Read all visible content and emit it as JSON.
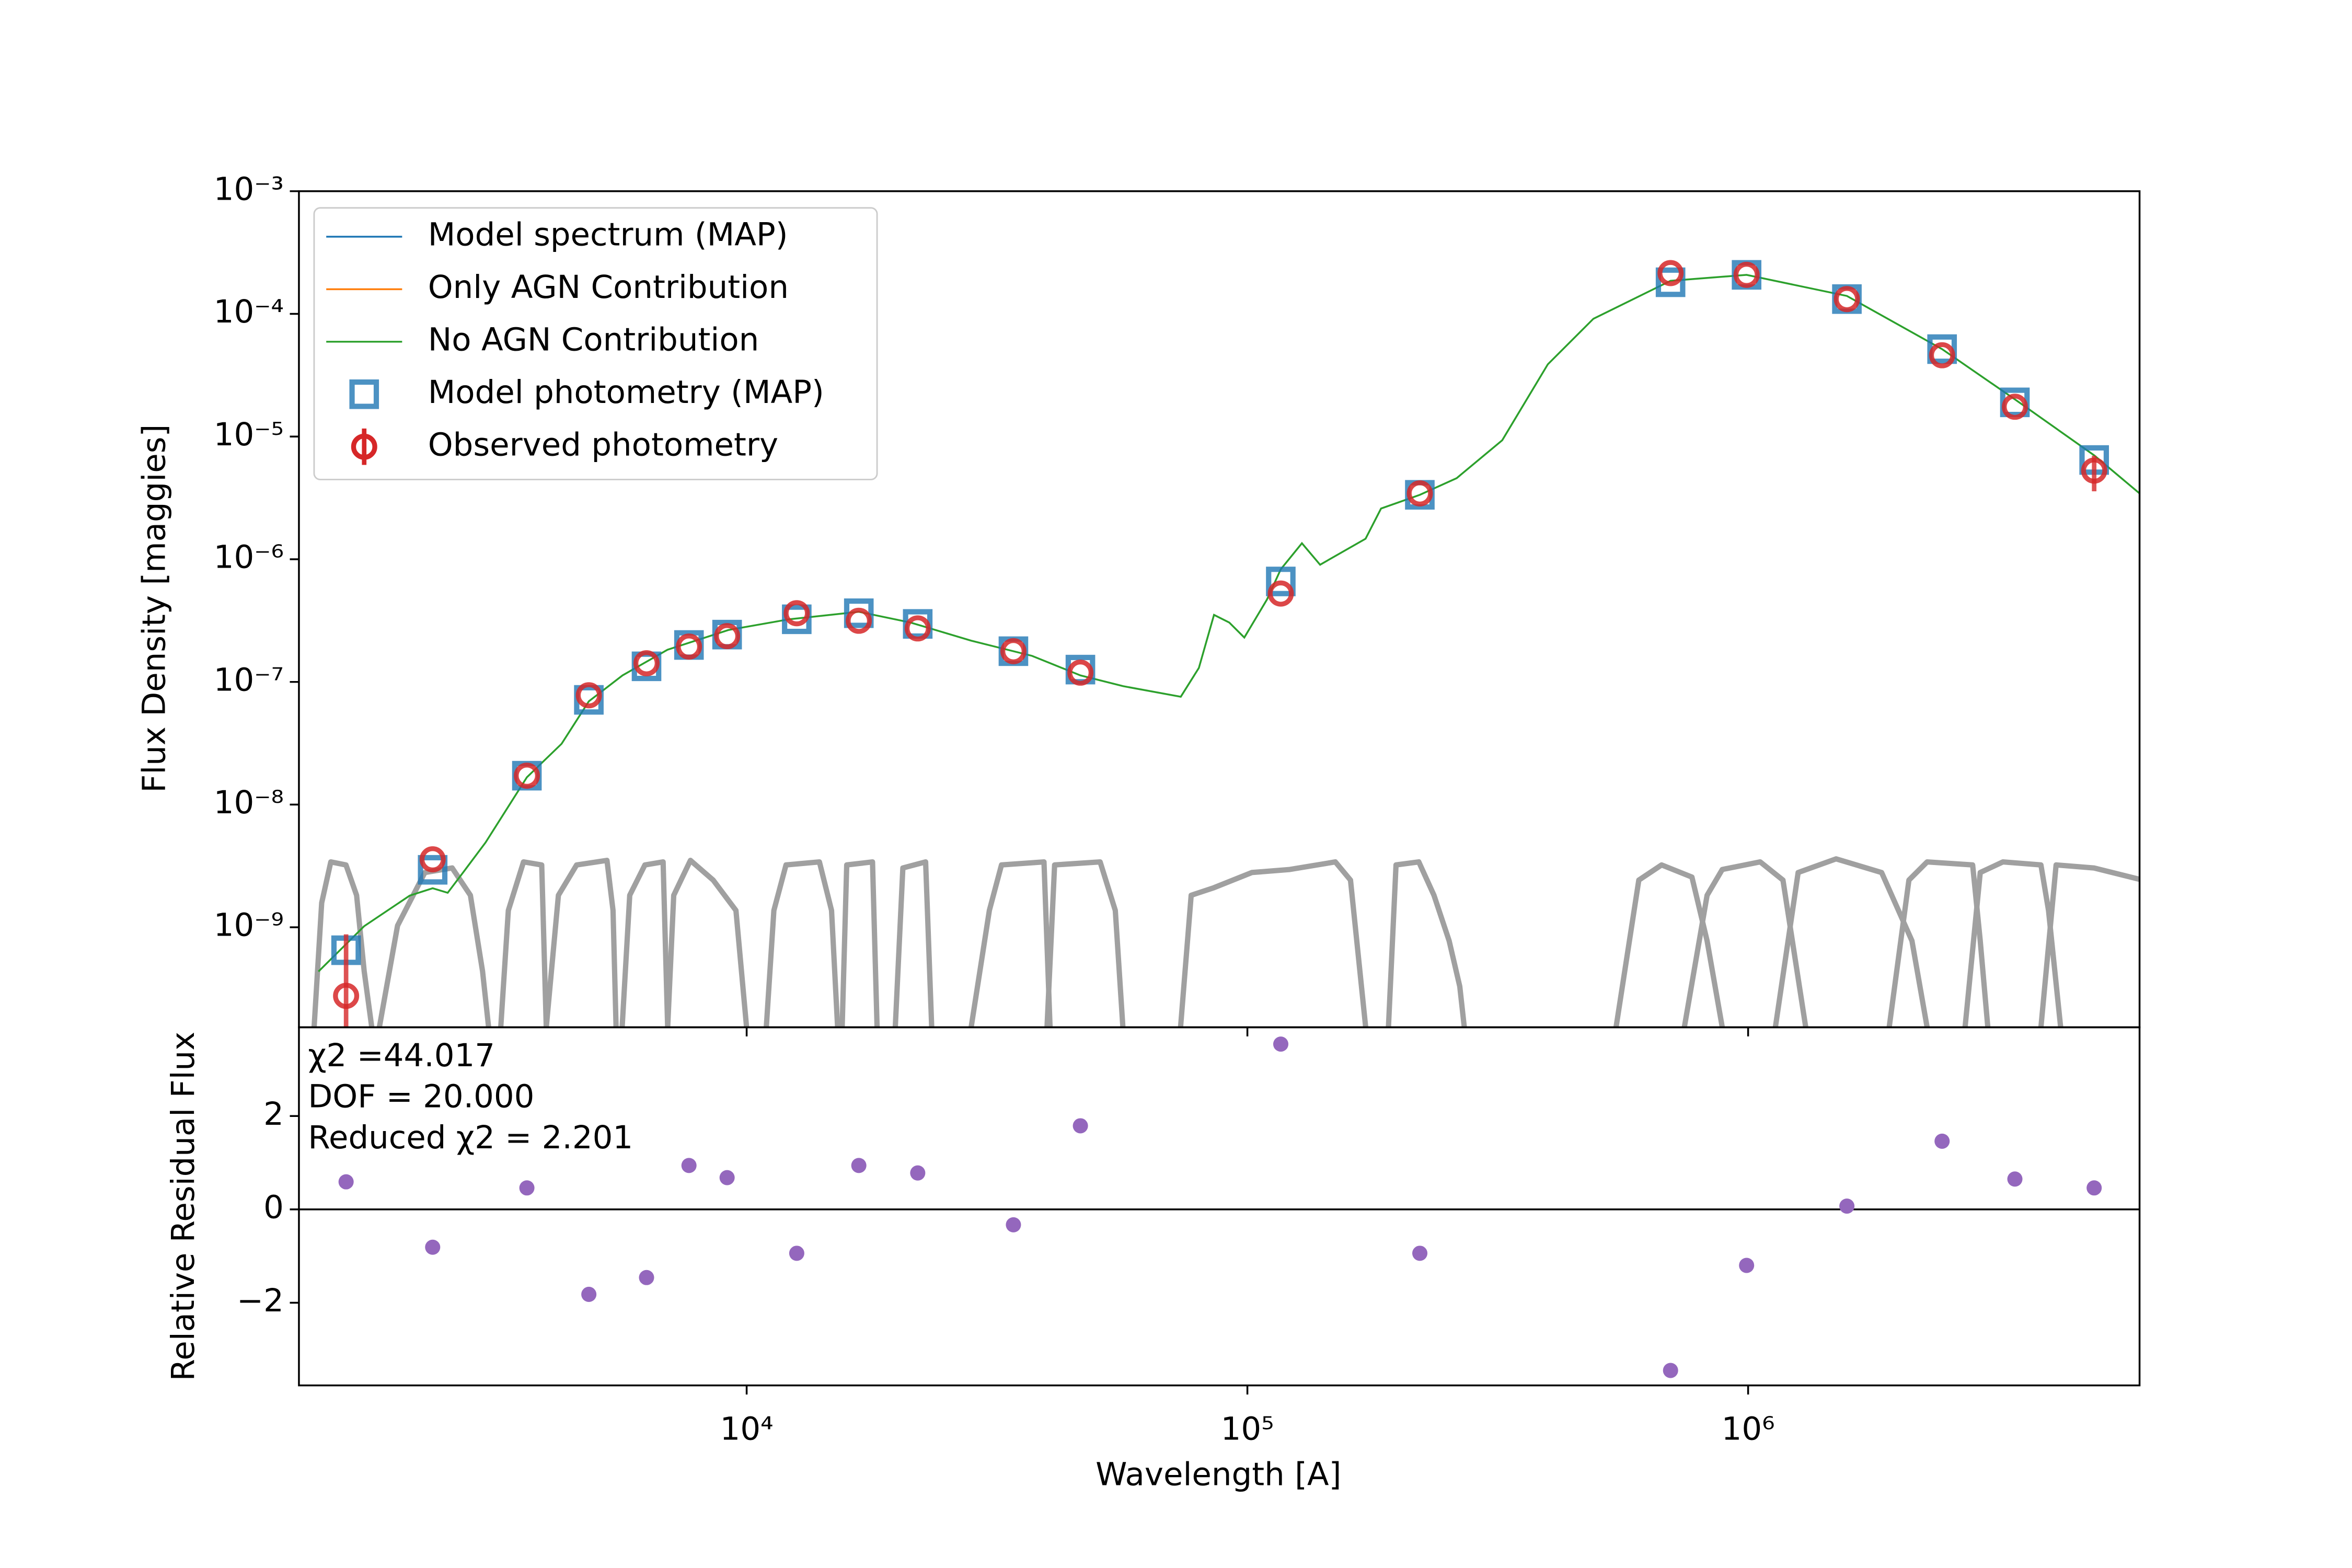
{
  "chart_data": [
    {
      "type": "sed",
      "ylabel": "Flux Density [maggies]",
      "xscale": "log",
      "yscale": "log",
      "xlim": [
        1276,
        6050000
      ],
      "ylim": [
        1.53e-10,
        0.001
      ],
      "yticks": [
        {
          "value": 0.001,
          "label": "10⁻³"
        },
        {
          "value": 0.0001,
          "label": "10⁻⁴"
        },
        {
          "value": 1e-05,
          "label": "10⁻⁵"
        },
        {
          "value": 1e-06,
          "label": "10⁻⁶"
        },
        {
          "value": 1e-07,
          "label": "10⁻⁷"
        },
        {
          "value": 1e-08,
          "label": "10⁻⁸"
        },
        {
          "value": 1e-09,
          "label": "10⁻⁹"
        }
      ],
      "legend": "upper left",
      "series": [
        {
          "name": "Model spectrum (MAP)",
          "color": "#1f77b4",
          "kind": "line",
          "x": [],
          "values": []
        },
        {
          "name": "Only AGN Contribution",
          "color": "#ff7f0e",
          "kind": "line",
          "x": [],
          "values": []
        },
        {
          "name": "No AGN Contribution",
          "color": "#2ca02c",
          "kind": "line",
          "x": [
            1396,
            1722,
            2123,
            2360,
            2529,
            2710,
            3010,
            3640,
            4270,
            4840,
            5650,
            6950,
            9200,
            12160,
            16750,
            21240,
            28060,
            37150,
            46400,
            56490,
            73620,
            80000,
            85770,
            92000,
            98600,
            109400,
            116600,
            128500,
            139700,
            172200,
            184900,
            221000,
            261800,
            322800,
            398100,
            490900,
            700000,
            993000,
            1575000,
            2440000,
            3410000,
            4910000,
            6050000
          ],
          "values": [
            4.36e-10,
            1.02e-09,
            1.81e-09,
            2.08e-09,
            1.91e-09,
            2.77e-09,
            4.91e-09,
            1.67e-08,
            3.13e-08,
            6.95e-08,
            1.13e-07,
            1.83e-07,
            2.65e-07,
            3.24e-07,
            3.73e-07,
            3.05e-07,
            2.17e-07,
            1.63e-07,
            1.13e-07,
            9.23e-08,
            7.57e-08,
            1.3e-07,
            3.52e-07,
            3.05e-07,
            2.3e-07,
            4.69e-07,
            8.28e-07,
            1.35e-06,
            9.02e-07,
            1.47e-06,
            2.59e-06,
            3.35e-06,
            4.58e-06,
            9.33e-06,
            3.88e-05,
            9.12e-05,
            0.000186,
            0.000208,
            0.00014,
            5.16e-05,
            2.01e-05,
            7.03e-06,
            3.44e-06
          ]
        },
        {
          "name": "Model photometry (MAP)",
          "color": "#1f77b4",
          "kind": "square",
          "x": [
            1585,
            2360,
            3640,
            4840,
            6310,
            7670,
            9140,
            12590,
            16750,
            21960,
            34100,
            46400,
            116600,
            221000,
            700000,
            993000,
            1575000,
            2440000,
            3410000,
            4910000
          ],
          "values": [
            6.5e-10,
            2.94e-09,
            1.72e-08,
            7.14e-08,
            1.34e-07,
            2e-07,
            2.43e-07,
            3.24e-07,
            3.63e-07,
            2.97e-07,
            1.78e-07,
            1.26e-07,
            6.59e-07,
            3.35e-06,
            0.000181,
            0.000208,
            0.000132,
            5.16e-05,
            1.9e-05,
            6.44e-06
          ]
        },
        {
          "name": "Observed photometry",
          "color": "#d62728",
          "kind": "errorbar",
          "x": [
            1585,
            2360,
            3640,
            4840,
            6310,
            7670,
            9140,
            12590,
            16750,
            21960,
            34100,
            46400,
            116600,
            221000,
            700000,
            993000,
            1575000,
            2440000,
            3410000,
            4910000
          ],
          "values": [
            2.76e-10,
            3.58e-09,
            1.72e-08,
            7.78e-08,
            1.42e-07,
            1.94e-07,
            2.36e-07,
            3.63e-07,
            3.15e-07,
            2.73e-07,
            1.78e-07,
            1.19e-07,
            5.25e-07,
            3.44e-06,
            0.000215,
            0.000208,
            0.000132,
            4.6e-05,
            1.75e-05,
            5.28e-06
          ],
          "errors": [
            6e-10,
            null,
            null,
            null,
            null,
            null,
            null,
            null,
            null,
            null,
            null,
            null,
            null,
            null,
            null,
            null,
            null,
            null,
            null,
            1.7e-06
          ]
        }
      ]
    },
    {
      "type": "scatter",
      "xlabel": "Wavelength [A]",
      "ylabel": "Relative Residual Flux",
      "xscale": "log",
      "xlim": [
        1276,
        6050000
      ],
      "ylim": [
        -3.77,
        3.9
      ],
      "xticks": [
        {
          "value": 10000,
          "label": "10⁴"
        },
        {
          "value": 100000,
          "label": "10⁵"
        },
        {
          "value": 1000000,
          "label": "10⁶"
        }
      ],
      "yticks": [
        {
          "value": -2,
          "label": "−2"
        },
        0,
        2
      ],
      "reference_line": 0,
      "color": "#9467bd",
      "x": [
        1585,
        2360,
        3640,
        4840,
        6310,
        7670,
        9140,
        12590,
        16750,
        21960,
        34100,
        46400,
        116600,
        221000,
        700000,
        993000,
        1575000,
        2440000,
        3410000,
        4910000
      ],
      "values": [
        0.59,
        -0.81,
        0.46,
        -1.82,
        -1.46,
        0.94,
        0.68,
        -0.94,
        0.94,
        0.78,
        -0.33,
        1.79,
        3.54,
        -0.94,
        -3.45,
        -1.2,
        0.07,
        1.46,
        0.65,
        0.46
      ],
      "annotations": [
        "χ2 =44.017",
        "DOF = 20.000",
        "Reduced χ2 = 2.201"
      ]
    }
  ]
}
